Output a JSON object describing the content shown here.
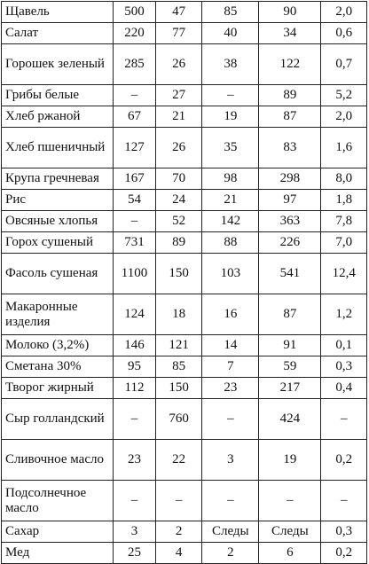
{
  "rows": [
    {
      "name": "Щавель",
      "v": [
        "500",
        "47",
        "85",
        "90",
        "2,0"
      ]
    },
    {
      "name": "Салат",
      "v": [
        "220",
        "77",
        "40",
        "34",
        "0,6"
      ]
    },
    {
      "name": "Горошек зеленый",
      "v": [
        "285",
        "26",
        "38",
        "122",
        "0,7"
      ]
    },
    {
      "name": "Грибы белые",
      "v": [
        "–",
        "27",
        "–",
        "89",
        "5,2"
      ]
    },
    {
      "name": "Хлеб ржаной",
      "v": [
        "67",
        "21",
        "19",
        "87",
        "2,0"
      ]
    },
    {
      "name": "Хлеб пшеничный",
      "v": [
        "127",
        "26",
        "35",
        "83",
        "1,6"
      ]
    },
    {
      "name": "Крупа гречневая",
      "v": [
        "167",
        "70",
        "98",
        "298",
        "8,0"
      ]
    },
    {
      "name": "Рис",
      "v": [
        "54",
        "24",
        "21",
        "97",
        "1,8"
      ]
    },
    {
      "name": "Овсяные хлопья",
      "v": [
        "–",
        "52",
        "142",
        "363",
        "7,8"
      ]
    },
    {
      "name": "Горох сушеный",
      "v": [
        "731",
        "89",
        "88",
        "226",
        "7,0"
      ]
    },
    {
      "name": "Фасоль сушеная",
      "v": [
        "1100",
        "150",
        "103",
        "541",
        "12,4"
      ]
    },
    {
      "name": "Макаронные изделия",
      "v": [
        "124",
        "18",
        "16",
        "87",
        "1,2"
      ]
    },
    {
      "name": "Молоко (3,2%)",
      "v": [
        "146",
        "121",
        "14",
        "91",
        "0,1"
      ]
    },
    {
      "name": "Сметана 30%",
      "v": [
        "95",
        "85",
        "7",
        "59",
        "0,3"
      ]
    },
    {
      "name": "Творог жирный",
      "v": [
        "112",
        "150",
        "23",
        "217",
        "0,4"
      ]
    },
    {
      "name": "Сыр голландский",
      "v": [
        "–",
        "760",
        "–",
        "424",
        "–"
      ]
    },
    {
      "name": "Сливочное масло",
      "v": [
        "23",
        "22",
        "3",
        "19",
        "0,2"
      ]
    },
    {
      "name": "Подсолнечное масло",
      "v": [
        "–",
        "–",
        "–",
        "–",
        "–"
      ]
    },
    {
      "name": "Сахар",
      "v": [
        "3",
        "2",
        "Следы",
        "Следы",
        "0,3"
      ]
    },
    {
      "name": "Мед",
      "v": [
        "25",
        "4",
        "2",
        "6",
        "0,2"
      ]
    }
  ]
}
